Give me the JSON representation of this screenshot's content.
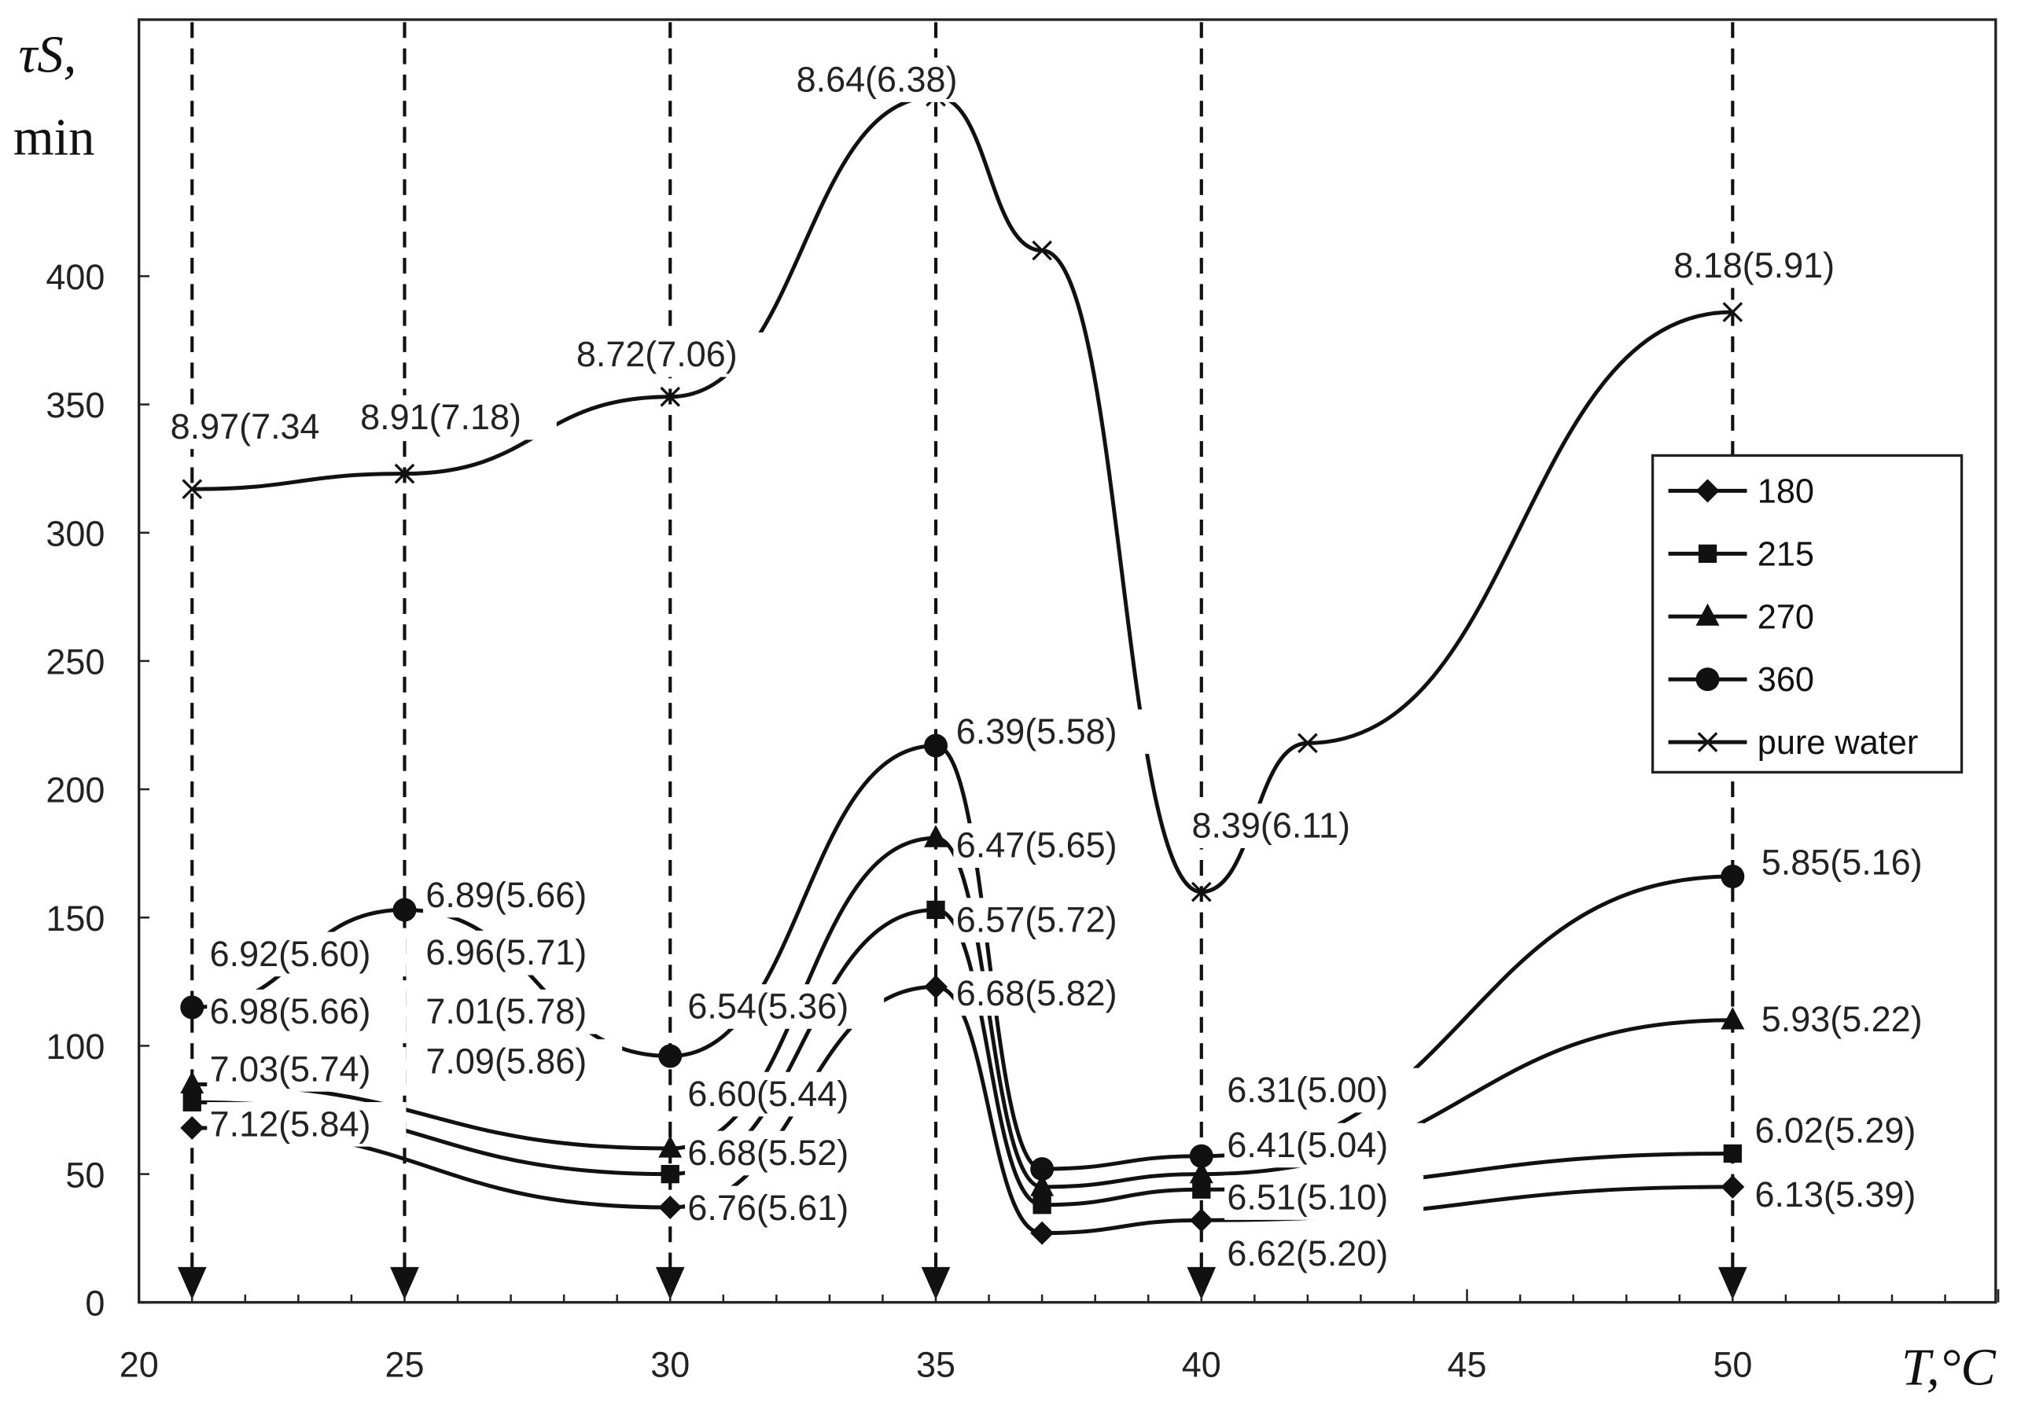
{
  "chart_data": {
    "type": "line",
    "title": "",
    "xlabel": "T,°C",
    "ylabel": "τS, min",
    "ylabel_symbol": "τS,",
    "ylabel_unit": "min",
    "xlim": [
      20,
      55
    ],
    "ylim": [
      0,
      480
    ],
    "x_ticks": [
      20,
      25,
      30,
      35,
      40,
      45,
      50
    ],
    "y_ticks": [
      0,
      50,
      100,
      150,
      200,
      250,
      300,
      350,
      400
    ],
    "grid": false,
    "legend_position": "right",
    "reference_lines_x": [
      21,
      25,
      30,
      35,
      40,
      50
    ],
    "series": [
      {
        "name": "180",
        "marker": "diamond",
        "x": [
          21,
          30,
          35,
          37,
          40,
          50
        ],
        "values": [
          68,
          37,
          123,
          27,
          32,
          45
        ]
      },
      {
        "name": "215",
        "marker": "square",
        "x": [
          21,
          30,
          35,
          37,
          40,
          50
        ],
        "values": [
          78,
          50,
          153,
          38,
          44,
          58
        ]
      },
      {
        "name": "270",
        "marker": "triangle",
        "x": [
          21,
          30,
          35,
          37,
          40,
          50
        ],
        "values": [
          85,
          60,
          181,
          45,
          50,
          110
        ]
      },
      {
        "name": "360",
        "marker": "circle",
        "x": [
          21,
          25,
          30,
          35,
          37,
          40,
          50
        ],
        "values": [
          115,
          153,
          96,
          217,
          52,
          57,
          166
        ]
      },
      {
        "name": "pure water",
        "marker": "x",
        "x": [
          21,
          25,
          30,
          35,
          37,
          40,
          42,
          50
        ],
        "values": [
          317,
          323,
          353,
          470,
          410,
          160,
          218,
          386
        ]
      }
    ],
    "annotations": [
      "8.97(7.34",
      "8.91(7.18)",
      "8.72(7.06)",
      "8.64(6.38)",
      "8.18(5.91)",
      "6.39(5.58)",
      "8.39(6.11)",
      "6.47(5.65)",
      "6.89(5.66)",
      "6.92(5.60)",
      "6.96(5.71)",
      "6.57(5.72)",
      "6.68(5.82)",
      "6.98(5.66)",
      "7.01(5.78)",
      "6.54(5.36)",
      "7.09(5.86)",
      "7.03(5.74)",
      "6.60(5.44)",
      "7.12(5.84)",
      "6.68(5.52)",
      "6.76(5.61)",
      "6.31(5.00)",
      "6.41(5.04)",
      "6.51(5.10)",
      "6.62(5.20)",
      "5.85(5.16)",
      "5.93(5.22)",
      "6.02(5.29)",
      "6.13(5.39)"
    ]
  }
}
